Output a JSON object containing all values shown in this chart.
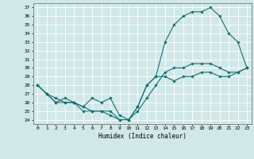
{
  "xlabel": "Humidex (Indice chaleur)",
  "xlim": [
    -0.5,
    23.5
  ],
  "ylim": [
    23.5,
    37.5
  ],
  "yticks": [
    24,
    25,
    26,
    27,
    28,
    29,
    30,
    31,
    32,
    33,
    34,
    35,
    36,
    37
  ],
  "xticks": [
    0,
    1,
    2,
    3,
    4,
    5,
    6,
    7,
    8,
    9,
    10,
    11,
    12,
    13,
    14,
    15,
    16,
    17,
    18,
    19,
    20,
    21,
    22,
    23
  ],
  "bg_color": "#d1e8e8",
  "line_color": "#1a7070",
  "grid_color": "#ffffff",
  "line1": [
    28,
    27,
    26.5,
    26,
    26,
    25.5,
    25,
    25,
    24.5,
    24,
    24,
    25.5,
    28,
    29,
    33,
    35,
    36,
    36.5,
    36.5,
    37,
    36,
    34,
    33,
    30
  ],
  "line2": [
    28,
    27,
    26,
    26,
    26,
    25,
    25,
    25,
    25,
    24,
    24,
    25,
    26.5,
    28,
    29.5,
    30,
    30,
    30.5,
    30.5,
    30.5,
    30,
    29.5,
    29.5,
    30
  ],
  "line3": [
    28,
    27,
    26,
    26.5,
    26,
    25.5,
    26.5,
    26,
    26.5,
    24.5,
    24,
    25.5,
    28,
    29,
    29,
    28.5,
    29,
    29,
    29.5,
    29.5,
    29,
    29,
    29.5,
    30
  ]
}
